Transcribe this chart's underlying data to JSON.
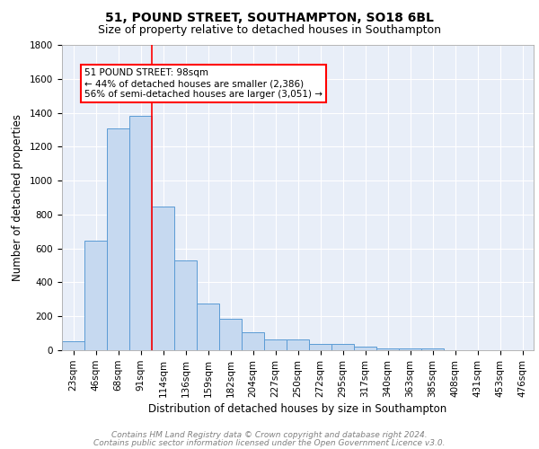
{
  "title_line1": "51, POUND STREET, SOUTHAMPTON, SO18 6BL",
  "title_line2": "Size of property relative to detached houses in Southampton",
  "xlabel": "Distribution of detached houses by size in Southampton",
  "ylabel": "Number of detached properties",
  "categories": [
    "23sqm",
    "46sqm",
    "68sqm",
    "91sqm",
    "114sqm",
    "136sqm",
    "159sqm",
    "182sqm",
    "204sqm",
    "227sqm",
    "250sqm",
    "272sqm",
    "295sqm",
    "317sqm",
    "340sqm",
    "363sqm",
    "385sqm",
    "408sqm",
    "431sqm",
    "453sqm",
    "476sqm"
  ],
  "values": [
    55,
    645,
    1310,
    1380,
    845,
    530,
    275,
    185,
    105,
    65,
    65,
    38,
    35,
    20,
    10,
    10,
    12,
    0,
    0,
    0,
    0
  ],
  "bar_color": "#c6d9f0",
  "bar_edge_color": "#5b9bd5",
  "vertical_line_x": 3.5,
  "annotation_text": "51 POUND STREET: 98sqm\n← 44% of detached houses are smaller (2,386)\n56% of semi-detached houses are larger (3,051) →",
  "annotation_box_color": "white",
  "annotation_box_edge_color": "red",
  "vline_color": "red",
  "ylim": [
    0,
    1800
  ],
  "yticks": [
    0,
    200,
    400,
    600,
    800,
    1000,
    1200,
    1400,
    1600,
    1800
  ],
  "background_color": "#e8eef8",
  "grid_color": "white",
  "footer_line1": "Contains HM Land Registry data © Crown copyright and database right 2024.",
  "footer_line2": "Contains public sector information licensed under the Open Government Licence v3.0.",
  "title_fontsize": 10,
  "subtitle_fontsize": 9,
  "axis_label_fontsize": 8.5,
  "tick_fontsize": 7.5,
  "annotation_fontsize": 7.5,
  "footer_fontsize": 6.5
}
